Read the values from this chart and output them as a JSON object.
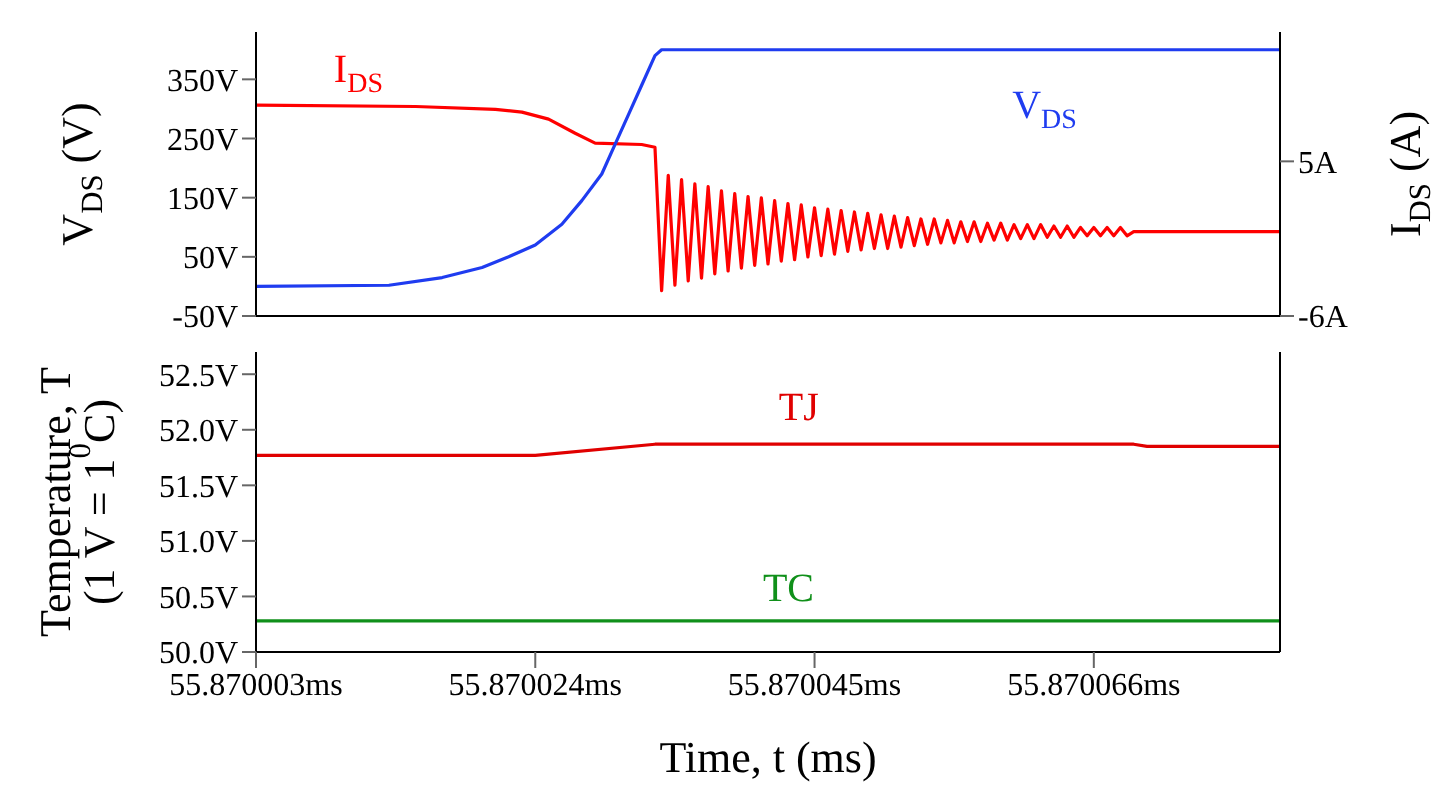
{
  "chart_data": [
    {
      "type": "line",
      "ylabel": "V$_{DS}$ (V)",
      "y2label": "I$_{DS}$ (A)",
      "xlim": [
        55.870003,
        55.87008
      ],
      "ylim": [
        -50,
        430
      ],
      "yticks": [
        {
          "value": -50,
          "label": "-50V"
        },
        {
          "value": 50,
          "label": "50V"
        },
        {
          "value": 150,
          "label": "150V"
        },
        {
          "value": 250,
          "label": "250V"
        },
        {
          "value": 350,
          "label": "350V"
        }
      ],
      "y2lim": [
        -6,
        14.2
      ],
      "y2ticks": [
        {
          "value": -6,
          "label": "-6A"
        },
        {
          "value": 5,
          "label": "5A"
        }
      ],
      "tick_labels": "y",
      "legend": false,
      "grid": false,
      "series": [
        {
          "name": "I$_{DS}$",
          "color": "#ff0000",
          "axis": "y2",
          "x": [
            55.870003,
            55.870015,
            55.870021,
            55.870023,
            55.870025,
            55.870027,
            55.8700285,
            55.870032,
            55.870033,
            55.8700335,
            55.870034,
            55.8700345,
            55.870035,
            55.8700355,
            55.870036,
            55.8700365,
            55.870037,
            55.8700375,
            55.870038,
            55.8700385,
            55.870039,
            55.8700395,
            55.87004,
            55.8700405,
            55.870041,
            55.8700415,
            55.870042,
            55.8700425,
            55.870043,
            55.8700435,
            55.870044,
            55.8700445,
            55.870045,
            55.8700455,
            55.870046,
            55.8700465,
            55.870047,
            55.8700475,
            55.870048,
            55.8700485,
            55.870049,
            55.8700495,
            55.87005,
            55.8700505,
            55.870051,
            55.8700515,
            55.870052,
            55.8700525,
            55.870053,
            55.8700535,
            55.870054,
            55.8700545,
            55.870055,
            55.8700555,
            55.870056,
            55.8700565,
            55.870057,
            55.8700575,
            55.870058,
            55.8700585,
            55.870059,
            55.8700595,
            55.87006,
            55.8700605,
            55.870061,
            55.8700615,
            55.870062,
            55.8700625,
            55.870063,
            55.8700635,
            55.870064,
            55.8700645,
            55.870065,
            55.8700655,
            55.870066,
            55.8700665,
            55.870067,
            55.8700675,
            55.870068,
            55.8700685,
            55.870069,
            55.87008
          ],
          "values": [
            9.0,
            8.9,
            8.7,
            8.5,
            8.0,
            7.0,
            6.3,
            6.2,
            6.0,
            -4.2,
            4.0,
            -3.8,
            3.7,
            -3.5,
            3.4,
            -3.3,
            3.2,
            -3.0,
            2.9,
            -2.8,
            2.7,
            -2.6,
            2.5,
            -2.4,
            2.4,
            -2.3,
            2.2,
            -2.1,
            2.0,
            -2.0,
            1.9,
            -1.8,
            1.7,
            -1.7,
            1.6,
            -1.6,
            1.5,
            -1.4,
            1.4,
            -1.3,
            1.3,
            -1.2,
            1.2,
            -1.2,
            1.1,
            -1.1,
            1.0,
            -1.0,
            0.9,
            -0.9,
            0.9,
            -0.8,
            0.8,
            -0.8,
            0.7,
            -0.7,
            0.7,
            -0.7,
            0.6,
            -0.6,
            0.6,
            -0.6,
            0.5,
            -0.5,
            0.5,
            -0.5,
            0.5,
            -0.4,
            0.4,
            -0.4,
            0.4,
            -0.4,
            0.3,
            -0.3,
            0.3,
            -0.3,
            0.3,
            -0.3,
            0.3,
            -0.3,
            0,
            0
          ]
        },
        {
          "name": "V$_{DS}$",
          "color": "#1f3cf0",
          "x": [
            55.870003,
            55.870013,
            55.870017,
            55.87002,
            55.870022,
            55.870024,
            55.870026,
            55.8700275,
            55.870029,
            55.87003,
            55.870031,
            55.870032,
            55.870033,
            55.8700335,
            55.87008
          ],
          "values": [
            0,
            2,
            15,
            32,
            50,
            70,
            105,
            145,
            190,
            240,
            290,
            340,
            390,
            400,
            400
          ]
        }
      ]
    },
    {
      "type": "line",
      "ylabel": "Temperature,  T\n(1 V = 1$^{0}$C)",
      "xlabel": "Time, t (ms)",
      "xlim": [
        55.870003,
        55.87008
      ],
      "xticks": [
        {
          "value": 55.870003,
          "label": "55.870003ms"
        },
        {
          "value": 55.870024,
          "label": "55.870024ms"
        },
        {
          "value": 55.870045,
          "label": "55.870045ms"
        },
        {
          "value": 55.870066,
          "label": "55.870066ms"
        }
      ],
      "ylim": [
        50,
        52.7
      ],
      "yticks": [
        {
          "value": 50,
          "label": "50.0V"
        },
        {
          "value": 50.5,
          "label": "50.5V"
        },
        {
          "value": 51,
          "label": "51.0V"
        },
        {
          "value": 51.5,
          "label": "51.5V"
        },
        {
          "value": 52,
          "label": "52.0V"
        },
        {
          "value": 52.5,
          "label": "52.5V"
        }
      ],
      "legend": false,
      "grid": false,
      "series": [
        {
          "name": "TJ",
          "color": "#e00000",
          "x": [
            55.870003,
            55.870024,
            55.870033,
            55.870069,
            55.87007,
            55.87008
          ],
          "values": [
            51.77,
            51.77,
            51.87,
            51.87,
            51.85,
            51.85
          ]
        },
        {
          "name": "TC",
          "color": "#10901a",
          "x": [
            55.870003,
            55.87008
          ],
          "values": [
            50.28,
            50.28
          ]
        }
      ]
    }
  ]
}
